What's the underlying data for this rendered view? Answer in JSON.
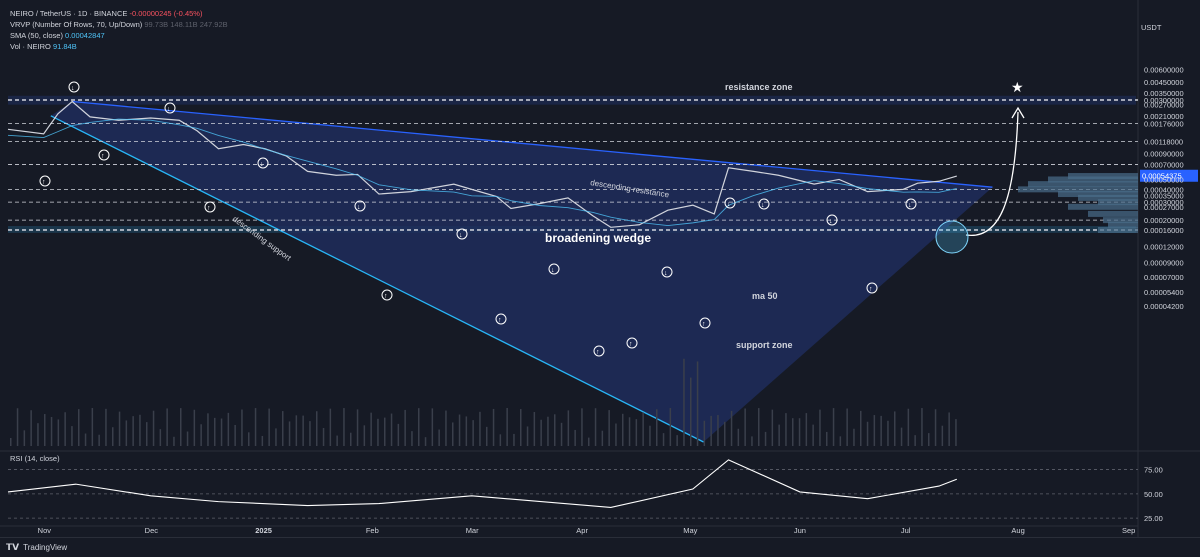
{
  "legend": {
    "symbol": "NEIRO / TetherUS · 1D · BINANCE",
    "change": "-0.00000245 (-0.45%)",
    "vrvp_label": "VRVP (Number Of Rows, 70, Up/Down)",
    "vrvp_values": "99.73B  148.11B  247.92B",
    "sma_label": "SMA (50, close)",
    "sma_value": "0.00042847",
    "vol_label": "Vol · NEIRO",
    "vol_value": "91.84B"
  },
  "price_unit": "USDT",
  "rsi_label": "RSI (14, close)",
  "footer": {
    "brand": "TradingView"
  },
  "colors": {
    "background": "#161a25",
    "up": "#d1d4dc",
    "down": "#e0855a",
    "sma": "#4fc3f7",
    "wedge_fill": "#1e2d5c",
    "resistance_line": "#2962ff",
    "support_line": "#29b6f6",
    "current_price": "#2962ff"
  },
  "annotations": {
    "resistance_zone": "resistance zone",
    "support_zone": "support zone",
    "descending_resistance": "descending resistance",
    "descending_support": "descending support",
    "pattern": "broadening wedge",
    "ma": "ma 50"
  },
  "chart_data": [
    {
      "type": "line",
      "title": "NEIRO / TetherUS · 1D · BINANCE",
      "y_scale": "log",
      "ylim": [
        4.2e-06,
        0.006
      ],
      "x_ticks": [
        "Nov",
        "Dec",
        "2025",
        "Feb",
        "Mar",
        "Apr",
        "May",
        "Jun",
        "Jul",
        "Aug",
        "Sep"
      ],
      "y_ticks": [
        "0.00600000",
        "0.00450000",
        "0.00350000",
        "0.00300000",
        "0.00270000",
        "0.00210000",
        "0.00176000",
        "0.00118000",
        "0.00090000",
        "0.00070000",
        "0.00054375",
        "0.00050000",
        "0.00040000",
        "0.00035000",
        "0.00030000",
        "0.00027000",
        "0.00020000",
        "0.00016000",
        "0.00012000",
        "0.00009000",
        "0.00007000",
        "0.00005400",
        "0.00004200"
      ],
      "current_price": "0.00054375",
      "horizontal_levels": [
        0.003,
        0.00176,
        0.00118,
        0.0007,
        0.0004,
        0.0003,
        0.0002,
        0.00016
      ],
      "series": [
        {
          "values": [
            {
              "x": "Oct 22",
              "y": 0.00155
            },
            {
              "x": "Nov 1",
              "y": 0.0014
            },
            {
              "x": "Nov 5",
              "y": 0.0022
            },
            {
              "x": "Nov 9",
              "y": 0.0029
            },
            {
              "x": "Nov 14",
              "y": 0.00205
            },
            {
              "x": "Nov 22",
              "y": 0.0019
            },
            {
              "x": "Dec 1",
              "y": 0.002
            },
            {
              "x": "Dec 9",
              "y": 0.0019
            },
            {
              "x": "Dec 14",
              "y": 0.0015
            },
            {
              "x": "Dec 20",
              "y": 0.001
            },
            {
              "x": "Dec 27",
              "y": 0.0011
            },
            {
              "x": "Jan 2",
              "y": 0.001
            },
            {
              "x": "Jan 8",
              "y": 0.00085
            },
            {
              "x": "Jan 14",
              "y": 0.0006
            },
            {
              "x": "Jan 22",
              "y": 0.00055
            },
            {
              "x": "Jan 28",
              "y": 0.00056
            },
            {
              "x": "Feb 3",
              "y": 0.00036
            },
            {
              "x": "Feb 12",
              "y": 0.00038
            },
            {
              "x": "Feb 24",
              "y": 0.00045
            },
            {
              "x": "Mar 1",
              "y": 0.0004
            },
            {
              "x": "Mar 8",
              "y": 0.00034
            },
            {
              "x": "Mar 12",
              "y": 0.00026
            },
            {
              "x": "Mar 20",
              "y": 0.00029
            },
            {
              "x": "Mar 28",
              "y": 0.00033
            },
            {
              "x": "Apr 4",
              "y": 0.00022
            },
            {
              "x": "Apr 9",
              "y": 0.00017
            },
            {
              "x": "Apr 17",
              "y": 0.00018
            },
            {
              "x": "Apr 25",
              "y": 0.00025
            },
            {
              "x": "May 2",
              "y": 0.00028
            },
            {
              "x": "May 8",
              "y": 0.00023
            },
            {
              "x": "May 12",
              "y": 0.00065
            },
            {
              "x": "May 19",
              "y": 0.0006
            },
            {
              "x": "May 26",
              "y": 0.00055
            },
            {
              "x": "Jun 5",
              "y": 0.00045
            },
            {
              "x": "Jun 12",
              "y": 0.0005
            },
            {
              "x": "Jun 20",
              "y": 0.00038
            },
            {
              "x": "Jun 30",
              "y": 0.0004
            },
            {
              "x": "Jul 4",
              "y": 0.00046
            },
            {
              "x": "Jul 10",
              "y": 0.00048
            },
            {
              "x": "Jul 15",
              "y": 0.00054
            }
          ]
        }
      ]
    },
    {
      "type": "line",
      "title": "RSI (14, close)",
      "ylim": [
        20,
        90
      ],
      "y_ticks": [
        "75.00",
        "50.00",
        "25.00"
      ],
      "series": [
        {
          "values": [
            {
              "x": "Oct 22",
              "y": 52
            },
            {
              "x": "Nov 10",
              "y": 60
            },
            {
              "x": "Dec 1",
              "y": 48
            },
            {
              "x": "Dec 20",
              "y": 42
            },
            {
              "x": "Jan 14",
              "y": 38
            },
            {
              "x": "Feb 3",
              "y": 40
            },
            {
              "x": "Mar 1",
              "y": 48
            },
            {
              "x": "Apr 9",
              "y": 36
            },
            {
              "x": "May 2",
              "y": 55
            },
            {
              "x": "May 12",
              "y": 85
            },
            {
              "x": "Jun 1",
              "y": 52
            },
            {
              "x": "Jun 20",
              "y": 45
            },
            {
              "x": "Jul 10",
              "y": 58
            },
            {
              "x": "Jul 15",
              "y": 65
            }
          ]
        }
      ]
    }
  ]
}
